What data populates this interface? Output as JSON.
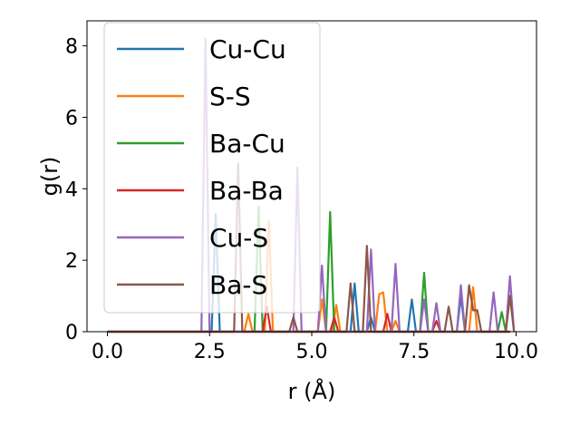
{
  "chart_data": {
    "type": "line",
    "title": "",
    "xlabel": "r (Å)",
    "ylabel": "g(r)",
    "xlim": [
      -0.5,
      10.5
    ],
    "ylim": [
      0,
      8.7
    ],
    "xticks": [
      0.0,
      2.5,
      5.0,
      7.5,
      10.0
    ],
    "xtick_labels": [
      "0.0",
      "2.5",
      "5.0",
      "7.5",
      "10.0"
    ],
    "yticks": [
      0,
      2,
      4,
      6,
      8
    ],
    "ytick_labels": [
      "0",
      "2",
      "4",
      "6",
      "8"
    ],
    "grid": false,
    "legend_position": "upper-left",
    "series": [
      {
        "name": "Cu-Cu",
        "color": "#1f77b4",
        "points": [
          [
            0,
            0
          ],
          [
            2.55,
            0
          ],
          [
            2.65,
            3.3
          ],
          [
            2.75,
            0
          ],
          [
            5.95,
            0
          ],
          [
            6.05,
            1.35
          ],
          [
            6.15,
            0
          ],
          [
            6.35,
            0
          ],
          [
            6.45,
            0.4
          ],
          [
            6.55,
            0
          ],
          [
            7.35,
            0
          ],
          [
            7.45,
            0.9
          ],
          [
            7.55,
            0
          ],
          [
            8.55,
            0
          ],
          [
            8.65,
            1.0
          ],
          [
            8.75,
            0
          ],
          [
            9.85,
            0
          ]
        ]
      },
      {
        "name": "S-S",
        "color": "#ff7f0e",
        "points": [
          [
            0,
            0
          ],
          [
            3.35,
            0
          ],
          [
            3.45,
            0.5
          ],
          [
            3.55,
            0
          ],
          [
            3.85,
            0
          ],
          [
            3.95,
            3.1
          ],
          [
            4.05,
            0
          ],
          [
            5.15,
            0
          ],
          [
            5.25,
            0.9
          ],
          [
            5.35,
            0
          ],
          [
            5.5,
            0
          ],
          [
            5.6,
            0.75
          ],
          [
            5.7,
            0
          ],
          [
            6.55,
            0
          ],
          [
            6.65,
            1.05
          ],
          [
            6.75,
            1.1
          ],
          [
            6.85,
            0
          ],
          [
            6.95,
            0
          ],
          [
            7.05,
            0.3
          ],
          [
            7.15,
            0
          ],
          [
            8.85,
            0
          ],
          [
            8.95,
            1.25
          ],
          [
            9.05,
            0
          ],
          [
            9.85,
            0
          ]
        ]
      },
      {
        "name": "Ba-Cu",
        "color": "#2ca02c",
        "points": [
          [
            0,
            0
          ],
          [
            3.6,
            0
          ],
          [
            3.7,
            3.5
          ],
          [
            3.8,
            0
          ],
          [
            5.35,
            0
          ],
          [
            5.45,
            3.35
          ],
          [
            5.55,
            0
          ],
          [
            7.65,
            0
          ],
          [
            7.75,
            1.65
          ],
          [
            7.85,
            0
          ],
          [
            9.55,
            0
          ],
          [
            9.65,
            0.55
          ],
          [
            9.75,
            0
          ],
          [
            9.85,
            0
          ]
        ]
      },
      {
        "name": "Ba-Ba",
        "color": "#d62728",
        "points": [
          [
            0,
            0
          ],
          [
            3.8,
            0
          ],
          [
            3.9,
            0.7
          ],
          [
            4.0,
            0
          ],
          [
            5.45,
            0
          ],
          [
            5.55,
            0.4
          ],
          [
            5.65,
            0
          ],
          [
            6.75,
            0
          ],
          [
            6.85,
            0.5
          ],
          [
            6.95,
            0
          ],
          [
            7.95,
            0
          ],
          [
            8.05,
            0.3
          ],
          [
            8.15,
            0
          ],
          [
            9.85,
            0
          ]
        ]
      },
      {
        "name": "Cu-S",
        "color": "#9467bd",
        "points": [
          [
            0,
            0
          ],
          [
            2.3,
            0
          ],
          [
            2.4,
            8.2
          ],
          [
            2.5,
            0
          ],
          [
            4.55,
            0
          ],
          [
            4.65,
            4.6
          ],
          [
            4.75,
            0
          ],
          [
            5.15,
            0
          ],
          [
            5.25,
            1.85
          ],
          [
            5.35,
            0
          ],
          [
            6.35,
            0
          ],
          [
            6.45,
            2.3
          ],
          [
            6.55,
            0
          ],
          [
            6.95,
            0
          ],
          [
            7.05,
            1.9
          ],
          [
            7.15,
            0
          ],
          [
            7.65,
            0
          ],
          [
            7.75,
            0.9
          ],
          [
            7.85,
            0
          ],
          [
            7.95,
            0
          ],
          [
            8.05,
            0.8
          ],
          [
            8.15,
            0
          ],
          [
            8.55,
            0
          ],
          [
            8.65,
            1.3
          ],
          [
            8.75,
            0
          ],
          [
            9.35,
            0
          ],
          [
            9.45,
            1.1
          ],
          [
            9.55,
            0
          ],
          [
            9.75,
            0
          ],
          [
            9.85,
            1.55
          ],
          [
            9.95,
            0
          ]
        ]
      },
      {
        "name": "Ba-S",
        "color": "#8c564b",
        "points": [
          [
            0,
            0
          ],
          [
            3.1,
            0
          ],
          [
            3.2,
            4.7
          ],
          [
            3.3,
            0
          ],
          [
            4.45,
            0
          ],
          [
            4.55,
            0.4
          ],
          [
            4.65,
            0
          ],
          [
            5.85,
            0
          ],
          [
            5.95,
            1.35
          ],
          [
            6.05,
            0
          ],
          [
            6.25,
            0
          ],
          [
            6.35,
            2.4
          ],
          [
            6.45,
            0
          ],
          [
            8.25,
            0
          ],
          [
            8.35,
            0.7
          ],
          [
            8.45,
            0
          ],
          [
            8.75,
            0
          ],
          [
            8.85,
            1.3
          ],
          [
            8.95,
            0.6
          ],
          [
            9.05,
            0.6
          ],
          [
            9.15,
            0
          ],
          [
            9.75,
            0
          ],
          [
            9.85,
            1.0
          ],
          [
            9.95,
            0
          ]
        ]
      }
    ]
  }
}
